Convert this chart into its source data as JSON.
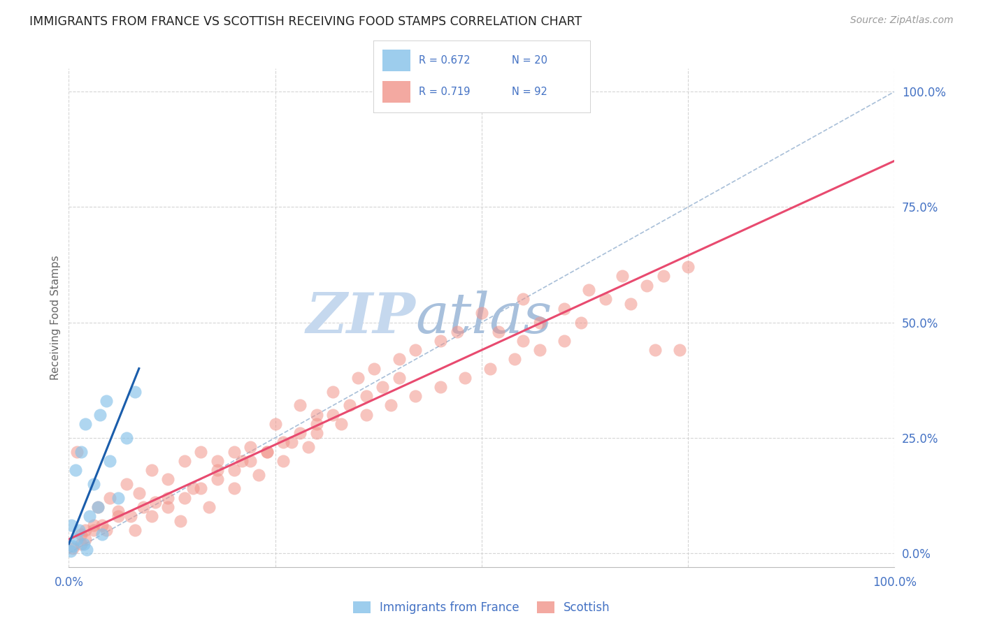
{
  "title": "IMMIGRANTS FROM FRANCE VS SCOTTISH RECEIVING FOOD STAMPS CORRELATION CHART",
  "source": "Source: ZipAtlas.com",
  "ylabel": "Receiving Food Stamps",
  "legend_france_r": "R = 0.672",
  "legend_france_n": "N = 20",
  "legend_scottish_r": "R = 0.719",
  "legend_scottish_n": "N = 92",
  "france_color": "#85C1E9",
  "scottish_color": "#F1948A",
  "france_line_color": "#1A5DAB",
  "scottish_line_color": "#E84A6F",
  "dashed_line_color": "#A8BFD8",
  "watermark_zip_color": "#C5D8EE",
  "watermark_atlas_color": "#B0C8E8",
  "background_color": "#FFFFFF",
  "grid_color": "#D5D5D5",
  "axis_label_color": "#4472C4",
  "title_color": "#222222",
  "france_scatter_x": [
    0.5,
    0.8,
    1.2,
    1.5,
    2.0,
    2.5,
    3.0,
    3.8,
    4.5,
    5.0,
    6.0,
    7.0,
    8.0,
    1.0,
    1.8,
    2.2,
    3.5,
    4.0,
    0.3,
    0.2
  ],
  "france_scatter_y": [
    1.5,
    18.0,
    5.0,
    22.0,
    28.0,
    8.0,
    15.0,
    30.0,
    33.0,
    20.0,
    12.0,
    25.0,
    35.0,
    3.0,
    2.0,
    0.8,
    10.0,
    4.0,
    6.0,
    0.5
  ],
  "scottish_scatter_x": [
    1.0,
    2.0,
    3.5,
    5.0,
    7.0,
    8.5,
    10.0,
    12.0,
    14.0,
    16.0,
    18.0,
    20.0,
    22.0,
    25.0,
    28.0,
    30.0,
    32.0,
    35.0,
    37.0,
    40.0,
    42.0,
    45.0,
    47.0,
    50.0,
    52.0,
    55.0,
    57.0,
    60.0,
    63.0,
    65.0,
    67.0,
    70.0,
    72.0,
    75.0,
    3.0,
    6.0,
    9.0,
    12.0,
    15.0,
    18.0,
    21.0,
    24.0,
    27.0,
    30.0,
    33.0,
    36.0,
    39.0,
    42.0,
    45.0,
    48.0,
    51.0,
    54.0,
    57.0,
    60.0,
    2.0,
    4.0,
    6.0,
    8.0,
    10.0,
    12.0,
    14.0,
    16.0,
    18.0,
    20.0,
    22.0,
    24.0,
    26.0,
    28.0,
    30.0,
    32.0,
    34.0,
    36.0,
    38.0,
    40.0,
    1.5,
    4.5,
    7.5,
    10.5,
    13.5,
    17.0,
    20.0,
    23.0,
    26.0,
    29.0,
    0.5,
    1.5,
    3.0,
    55.0,
    62.0,
    68.0,
    71.0,
    74.0
  ],
  "scottish_scatter_y": [
    22.0,
    5.0,
    10.0,
    12.0,
    15.0,
    13.0,
    18.0,
    16.0,
    20.0,
    22.0,
    20.0,
    22.0,
    23.0,
    28.0,
    32.0,
    30.0,
    35.0,
    38.0,
    40.0,
    42.0,
    44.0,
    46.0,
    48.0,
    52.0,
    48.0,
    55.0,
    50.0,
    53.0,
    57.0,
    55.0,
    60.0,
    58.0,
    60.0,
    62.0,
    5.0,
    8.0,
    10.0,
    12.0,
    14.0,
    18.0,
    20.0,
    22.0,
    24.0,
    26.0,
    28.0,
    30.0,
    32.0,
    34.0,
    36.0,
    38.0,
    40.0,
    42.0,
    44.0,
    46.0,
    3.0,
    6.0,
    9.0,
    5.0,
    8.0,
    10.0,
    12.0,
    14.0,
    16.0,
    18.0,
    20.0,
    22.0,
    24.0,
    26.0,
    28.0,
    30.0,
    32.0,
    34.0,
    36.0,
    38.0,
    2.0,
    5.0,
    8.0,
    11.0,
    7.0,
    10.0,
    14.0,
    17.0,
    20.0,
    23.0,
    1.0,
    4.0,
    6.0,
    46.0,
    50.0,
    54.0,
    44.0,
    44.0
  ],
  "france_line_x": [
    0.0,
    8.5
  ],
  "france_line_y": [
    2.0,
    40.0
  ],
  "scottish_line_x": [
    0.0,
    100.0
  ],
  "scottish_line_y": [
    3.0,
    85.0
  ],
  "dashed_line_x": [
    0.0,
    100.0
  ],
  "dashed_line_y": [
    0.0,
    100.0
  ],
  "xlim": [
    0,
    100
  ],
  "ylim": [
    -3,
    105
  ],
  "yticks": [
    0,
    25,
    50,
    75,
    100
  ],
  "xticks": [
    0,
    25,
    50,
    75,
    100
  ]
}
